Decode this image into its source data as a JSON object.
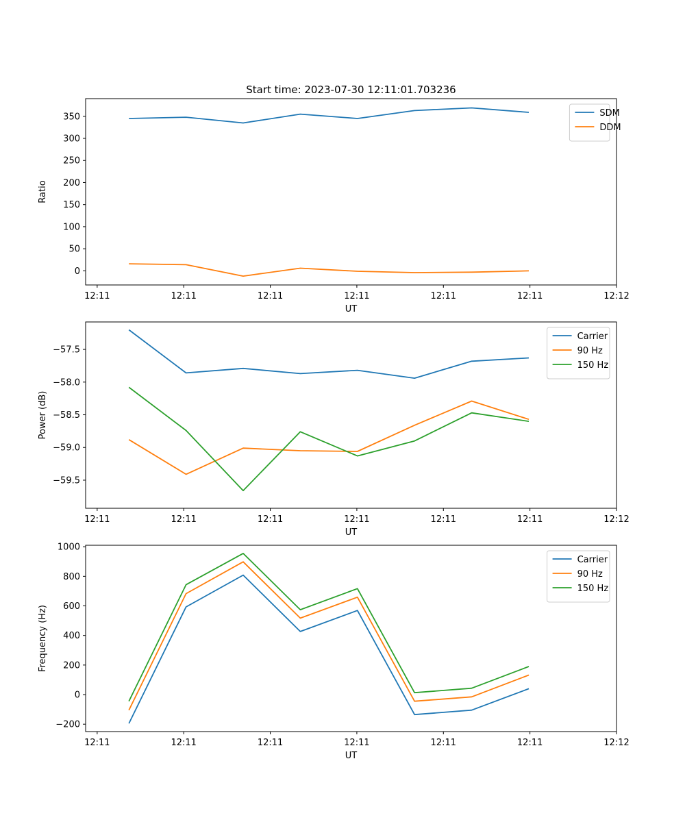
{
  "figure_title": "Start time: 2023-07-30 12:11:01.703236",
  "colors": {
    "blue": "#1f77b4",
    "orange": "#ff7f0e",
    "green": "#2ca02c",
    "axis": "#000000",
    "legend_border": "#cccccc"
  },
  "chart_data": [
    {
      "type": "line",
      "xlabel": "UT",
      "ylabel": "Ratio",
      "xlim": [
        -0.2,
        9.0
      ],
      "ylim": [
        -32,
        390
      ],
      "xtick_positions": [
        0,
        1.5,
        3,
        4.5,
        6,
        7.5,
        9
      ],
      "xtick_labels": [
        "12:11",
        "12:11",
        "12:11",
        "12:11",
        "12:11",
        "12:11",
        "12:12"
      ],
      "yticks": [
        0,
        50,
        100,
        150,
        200,
        250,
        300,
        350
      ],
      "ytick_labels": [
        "0",
        "50",
        "100",
        "150",
        "200",
        "250",
        "300",
        "350"
      ],
      "legend_position": "top-right",
      "x": [
        0.55,
        1.54,
        2.53,
        3.52,
        4.51,
        5.5,
        6.49,
        7.48
      ],
      "series": [
        {
          "name": "SDM",
          "color_key": "blue",
          "values": [
            345,
            348,
            335,
            355,
            345,
            363,
            369,
            359
          ]
        },
        {
          "name": "DDM",
          "color_key": "orange",
          "values": [
            16,
            14,
            -12,
            6,
            -1,
            -4,
            -3,
            0
          ]
        }
      ]
    },
    {
      "type": "line",
      "xlabel": "UT",
      "ylabel": "Power (dB)",
      "xlim": [
        -0.2,
        9.0
      ],
      "ylim": [
        -59.93,
        -57.08
      ],
      "xtick_positions": [
        0,
        1.5,
        3,
        4.5,
        6,
        7.5,
        9
      ],
      "xtick_labels": [
        "12:11",
        "12:11",
        "12:11",
        "12:11",
        "12:11",
        "12:11",
        "12:12"
      ],
      "yticks": [
        -59.5,
        -59.0,
        -58.5,
        -58.0,
        -57.5
      ],
      "ytick_labels": [
        "−59.5",
        "−59.0",
        "−58.5",
        "−58.0",
        "−57.5"
      ],
      "legend_position": "top-right",
      "x": [
        0.55,
        1.54,
        2.53,
        3.52,
        4.51,
        5.5,
        6.49,
        7.48
      ],
      "series": [
        {
          "name": "Carrier",
          "color_key": "blue",
          "values": [
            -57.2,
            -57.86,
            -57.79,
            -57.87,
            -57.82,
            -57.94,
            -57.68,
            -57.63
          ]
        },
        {
          "name": "90 Hz",
          "color_key": "orange",
          "values": [
            -58.88,
            -59.41,
            -59.01,
            -59.05,
            -59.06,
            -58.66,
            -58.29,
            -58.57
          ]
        },
        {
          "name": "150 Hz",
          "color_key": "green",
          "values": [
            -58.08,
            -58.74,
            -59.66,
            -58.76,
            -59.13,
            -58.9,
            -58.47,
            -58.6
          ]
        }
      ]
    },
    {
      "type": "line",
      "xlabel": "UT",
      "ylabel": "Frequency (Hz)",
      "xlim": [
        -0.2,
        9.0
      ],
      "ylim": [
        -250,
        1010
      ],
      "xtick_positions": [
        0,
        1.5,
        3,
        4.5,
        6,
        7.5,
        9
      ],
      "xtick_labels": [
        "12:11",
        "12:11",
        "12:11",
        "12:11",
        "12:11",
        "12:11",
        "12:12"
      ],
      "yticks": [
        -200,
        0,
        200,
        400,
        600,
        800,
        1000
      ],
      "ytick_labels": [
        "−200",
        "0",
        "200",
        "400",
        "600",
        "800",
        "1000"
      ],
      "legend_position": "top-right",
      "x": [
        0.55,
        1.54,
        2.53,
        3.52,
        4.51,
        5.5,
        6.49,
        7.48
      ],
      "series": [
        {
          "name": "Carrier",
          "color_key": "blue",
          "values": [
            -195,
            593,
            808,
            427,
            569,
            -135,
            -105,
            40
          ]
        },
        {
          "name": "90 Hz",
          "color_key": "orange",
          "values": [
            -105,
            683,
            898,
            517,
            659,
            -45,
            -15,
            132
          ]
        },
        {
          "name": "150 Hz",
          "color_key": "green",
          "values": [
            -45,
            743,
            955,
            574,
            717,
            13,
            43,
            190
          ]
        }
      ]
    }
  ]
}
